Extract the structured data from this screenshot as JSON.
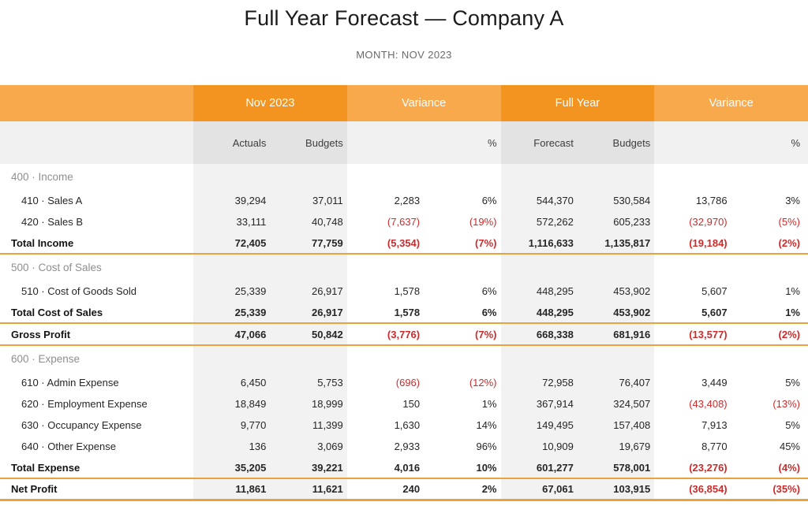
{
  "title": "Full Year Forecast — Company A",
  "subtitle": "MONTH: NOV 2023",
  "colors": {
    "accent_dark": "#F2941F",
    "accent_light": "#F7A94C",
    "rule": "#E9A23C",
    "neg": "#CB2B2B",
    "band": "#F2F2F2",
    "band_dark": "#E3E3E3",
    "subhead_bg": "#F1F1F1"
  },
  "table": {
    "group_labels": [
      "",
      "Nov 2023",
      "Variance",
      "Full Year",
      "Variance"
    ],
    "subheaders": [
      "",
      "Actuals",
      "Budgets",
      "",
      "%",
      "Forecast",
      "Budgets",
      "",
      "%"
    ],
    "column_keys": [
      "nov-actuals",
      "nov-budgets",
      "variance-amount",
      "variance-pct",
      "fy-forecast",
      "fy-budgets",
      "fy-variance-amount",
      "fy-variance-pct"
    ],
    "rows": [
      {
        "type": "section",
        "label": "400 · Income",
        "rule": "none",
        "values": [
          "",
          "",
          "",
          "",
          "",
          "",
          "",
          ""
        ]
      },
      {
        "type": "data",
        "label": "410 · Sales A",
        "rule": "none",
        "values": [
          "39,294",
          "37,011",
          "2,283",
          "6%",
          "544,370",
          "530,584",
          "13,786",
          "3%"
        ]
      },
      {
        "type": "data",
        "label": "420 · Sales B",
        "rule": "none",
        "values": [
          "33,111",
          "40,748",
          "(7,637)",
          "(19%)",
          "572,262",
          "605,233",
          "(32,970)",
          "(5%)"
        ]
      },
      {
        "type": "total",
        "label": "Total Income",
        "rule": "thin",
        "values": [
          "72,405",
          "77,759",
          "(5,354)",
          "(7%)",
          "1,116,633",
          "1,135,817",
          "(19,184)",
          "(2%)"
        ]
      },
      {
        "type": "section",
        "label": "500 · Cost of Sales",
        "rule": "none",
        "values": [
          "",
          "",
          "",
          "",
          "",
          "",
          "",
          ""
        ]
      },
      {
        "type": "data",
        "label": "510 · Cost of Goods Sold",
        "rule": "none",
        "values": [
          "25,339",
          "26,917",
          "1,578",
          "6%",
          "448,295",
          "453,902",
          "5,607",
          "1%"
        ]
      },
      {
        "type": "total",
        "label": "Total Cost of Sales",
        "rule": "thin",
        "values": [
          "25,339",
          "26,917",
          "1,578",
          "6%",
          "448,295",
          "453,902",
          "5,607",
          "1%"
        ]
      },
      {
        "type": "total",
        "label": "Gross Profit",
        "rule": "thin",
        "values": [
          "47,066",
          "50,842",
          "(3,776)",
          "(7%)",
          "668,338",
          "681,916",
          "(13,577)",
          "(2%)"
        ]
      },
      {
        "type": "section",
        "label": "600 · Expense",
        "rule": "none",
        "values": [
          "",
          "",
          "",
          "",
          "",
          "",
          "",
          ""
        ]
      },
      {
        "type": "data",
        "label": "610 · Admin Expense",
        "rule": "none",
        "values": [
          "6,450",
          "5,753",
          "(696)",
          "(12%)",
          "72,958",
          "76,407",
          "3,449",
          "5%"
        ]
      },
      {
        "type": "data",
        "label": "620 · Employment Expense",
        "rule": "none",
        "values": [
          "18,849",
          "18,999",
          "150",
          "1%",
          "367,914",
          "324,507",
          "(43,408)",
          "(13%)"
        ]
      },
      {
        "type": "data",
        "label": "630 · Occupancy Expense",
        "rule": "none",
        "values": [
          "9,770",
          "11,399",
          "1,630",
          "14%",
          "149,495",
          "157,408",
          "7,913",
          "5%"
        ]
      },
      {
        "type": "data",
        "label": "640 · Other Expense",
        "rule": "none",
        "values": [
          "136",
          "3,069",
          "2,933",
          "96%",
          "10,909",
          "19,679",
          "8,770",
          "45%"
        ]
      },
      {
        "type": "total",
        "label": "Total Expense",
        "rule": "thin",
        "values": [
          "35,205",
          "39,221",
          "4,016",
          "10%",
          "601,277",
          "578,001",
          "(23,276)",
          "(4%)"
        ]
      },
      {
        "type": "total",
        "label": "Net Profit",
        "rule": "thick",
        "values": [
          "11,861",
          "11,621",
          "240",
          "2%",
          "67,061",
          "103,915",
          "(36,854)",
          "(35%)"
        ]
      }
    ]
  }
}
